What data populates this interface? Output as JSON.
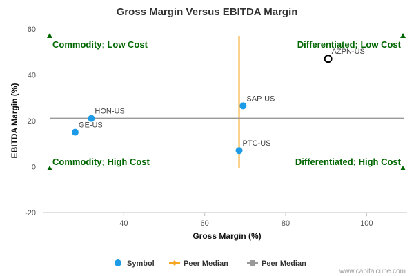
{
  "chart_data": {
    "type": "scatter",
    "title": "Gross Margin Versus EBITDA Margin",
    "xlabel": "Gross Margin (%)",
    "ylabel": "EBITDA Margin (%)",
    "xlim": [
      20,
      110
    ],
    "ylim": [
      -20,
      60
    ],
    "x_ticks": [
      40,
      60,
      80,
      100
    ],
    "y_ticks": [
      -20,
      0,
      20,
      40,
      60
    ],
    "grid": false,
    "legend_position": "bottom",
    "points": [
      {
        "label": "AZPN-US",
        "x": 90.5,
        "y": 47.0,
        "highlight": true
      },
      {
        "label": "SAP-US",
        "x": 69.5,
        "y": 26.5,
        "highlight": false
      },
      {
        "label": "HON-US",
        "x": 32.0,
        "y": 21.0,
        "highlight": false
      },
      {
        "label": "GE-US",
        "x": 28.0,
        "y": 15.0,
        "highlight": false
      },
      {
        "label": "PTC-US",
        "x": 68.5,
        "y": 7.0,
        "highlight": false
      }
    ],
    "peer_median_x": 68.5,
    "peer_median_y": 21.0,
    "quadrants": {
      "top_left": "Commodity; Low Cost",
      "top_right": "Differentiated; Low Cost",
      "bottom_left": "Commodity; High Cost",
      "bottom_right": "Differentiated; High Cost"
    },
    "legend": [
      {
        "name": "Symbol",
        "color": "#1E9BE6",
        "kind": "dot"
      },
      {
        "name": "Peer Median",
        "color": "#F5A623",
        "kind": "diamond-line"
      },
      {
        "name": "Peer Median",
        "color": "#999999",
        "kind": "square-line"
      }
    ],
    "colors": {
      "point": "#1E9BE6",
      "highlight_stroke": "#000000",
      "median_x_line": "#F5A623",
      "median_y_line": "#999999",
      "quadrant_text": "#006600",
      "marker": "#006600"
    }
  },
  "credit": "www.capitalcube.com"
}
